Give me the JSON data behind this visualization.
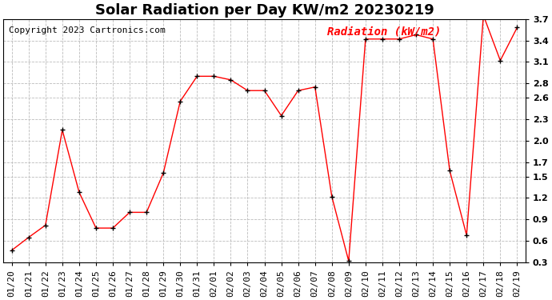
{
  "title": "Solar Radiation per Day KW/m2 20230219",
  "copyright": "Copyright 2023 Cartronics.com",
  "legend_label": "Radiation (kW/m2)",
  "dates": [
    "01/20",
    "01/21",
    "01/22",
    "01/23",
    "01/24",
    "01/25",
    "01/26",
    "01/27",
    "01/28",
    "01/29",
    "01/30",
    "01/31",
    "02/01",
    "02/02",
    "02/03",
    "02/04",
    "02/05",
    "02/06",
    "02/07",
    "02/08",
    "02/09",
    "02/10",
    "02/11",
    "02/12",
    "02/13",
    "02/14",
    "02/15",
    "02/16",
    "02/17",
    "02/18",
    "02/19"
  ],
  "values": [
    0.47,
    0.65,
    0.82,
    2.15,
    1.28,
    0.78,
    0.78,
    1.0,
    1.0,
    1.55,
    2.55,
    2.9,
    2.9,
    2.85,
    2.7,
    2.7,
    2.35,
    2.7,
    2.75,
    1.22,
    0.32,
    3.42,
    3.42,
    3.42,
    3.48,
    3.42,
    1.58,
    0.68,
    3.75,
    3.12,
    3.58
  ],
  "line_color": "red",
  "marker_color": "black",
  "ylim": [
    0.3,
    3.7
  ],
  "yticks": [
    0.3,
    0.6,
    0.9,
    1.2,
    1.5,
    1.7,
    2.0,
    2.3,
    2.6,
    2.8,
    3.1,
    3.4,
    3.7
  ],
  "background_color": "white",
  "grid_color": "#bbbbbb",
  "title_fontsize": 13,
  "copyright_fontsize": 8,
  "legend_fontsize": 10,
  "tick_fontsize": 8
}
